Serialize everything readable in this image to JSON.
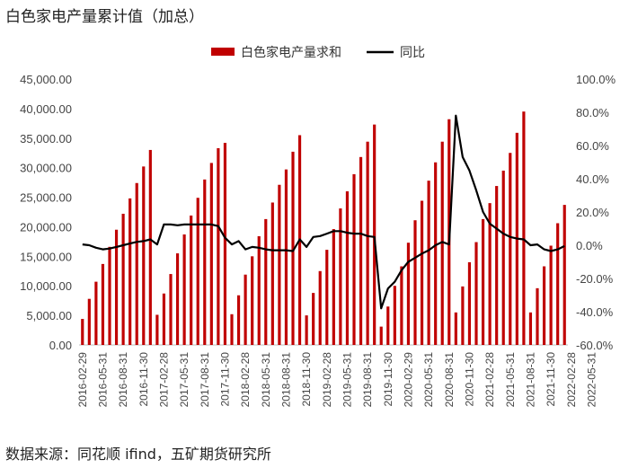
{
  "title": "白色家电产量累计值（加总）",
  "source": "数据来源：同花顺 ifind，五矿期货研究所",
  "chart_data": {
    "type": "bar",
    "title": "白色家电产量累计值（加总）",
    "legend": {
      "position": "top-center",
      "bar_label": "白色家电产量求和",
      "line_label": "同比"
    },
    "colors": {
      "bar": "#c00000",
      "line": "#000000"
    },
    "grid": false,
    "y_left": {
      "min": 0,
      "max": 45000,
      "ticks": [
        "0.00",
        "5,000.00",
        "10,000.00",
        "15,000.00",
        "20,000.00",
        "25,000.00",
        "30,000.00",
        "35,000.00",
        "40,000.00",
        "45,000.00"
      ]
    },
    "y_right": {
      "min": -60,
      "max": 100,
      "ticks": [
        "-60.0%",
        "-40.0%",
        "-20.0%",
        "0.0%",
        "20.0%",
        "40.0%",
        "60.0%",
        "80.0%",
        "100.0%"
      ]
    },
    "x_tick_labels": [
      "2016-02-29",
      "2016-05-31",
      "2016-08-31",
      "2016-11-30",
      "2017-02-28",
      "2017-05-31",
      "2017-08-31",
      "2017-11-30",
      "2018-02-28",
      "2018-05-31",
      "2018-08-31",
      "2018-11-30",
      "2019-02-28",
      "2019-05-31",
      "2019-08-31",
      "2019-11-30",
      "2020-02-29",
      "2020-05-31",
      "2020-08-31",
      "2020-11-30",
      "2021-02-28",
      "2021-05-31",
      "2021-08-31",
      "2021-11-30",
      "2022-02-28",
      "2022-05-31"
    ],
    "series": [
      {
        "name": "白色家电产量求和",
        "type": "bar",
        "axis": "left",
        "values": [
          4400,
          7800,
          10700,
          13700,
          16600,
          19500,
          22200,
          24800,
          27400,
          30200,
          33000,
          5100,
          8700,
          12000,
          15500,
          18700,
          21900,
          24900,
          28000,
          30800,
          33300,
          34200,
          5200,
          8400,
          11900,
          15000,
          18400,
          21300,
          24100,
          27100,
          29700,
          32700,
          35500,
          5000,
          8800,
          12500,
          16100,
          19600,
          23100,
          26000,
          28900,
          31800,
          34400,
          37300,
          3100,
          6500,
          10000,
          13300,
          17300,
          21100,
          24400,
          27800,
          30900,
          34400,
          38200,
          5500,
          9900,
          14000,
          17400,
          21300,
          24000,
          26900,
          29500,
          32500,
          35900,
          39500,
          5500,
          9600,
          13300,
          16800,
          20600,
          23700
        ]
      },
      {
        "name": "同比",
        "type": "line",
        "axis": "right",
        "values": [
          0.5,
          0,
          -1.5,
          -2.5,
          -2,
          -1,
          0,
          1,
          2,
          2.5,
          3.5,
          0.5,
          12.5,
          12.5,
          12,
          12.5,
          12.5,
          12.5,
          12.5,
          12.5,
          11.5,
          4.5,
          0.5,
          2.5,
          -2.5,
          -1,
          -1.5,
          -2.5,
          -3,
          -3,
          -3,
          -3.5,
          3.5,
          -1,
          5,
          5.5,
          7,
          8.5,
          8.5,
          7.5,
          7,
          7,
          5.5,
          5,
          -38,
          -26,
          -22,
          -15,
          -10,
          -7.5,
          -5,
          -3,
          0,
          2,
          0.5,
          78,
          53,
          45,
          33,
          20,
          13,
          10,
          7,
          5,
          4,
          3.5,
          0,
          0.5,
          -2.5,
          -3.5,
          -2.5,
          -0.5
        ]
      }
    ]
  }
}
